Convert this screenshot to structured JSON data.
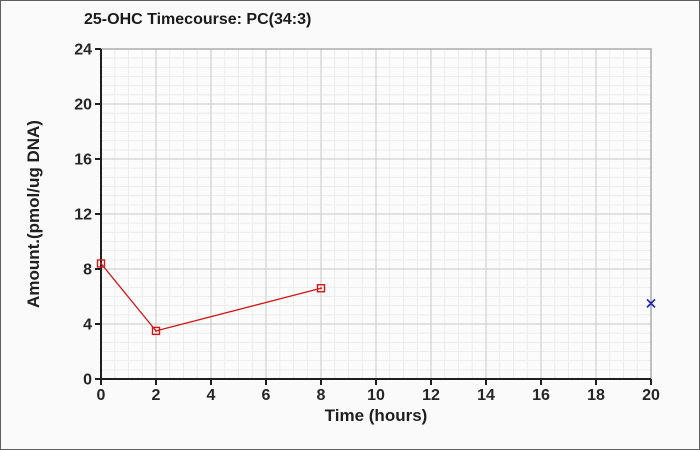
{
  "frame": {
    "background": "#fafafa",
    "border_color": "#5f5f5f"
  },
  "chart_data": {
    "type": "line",
    "title": "25-OHC Timecourse: PC(34:3)",
    "xlabel": "Time (hours)",
    "ylabel": "Amount.(pmol/ug DNA)",
    "xlim": [
      0,
      20
    ],
    "ylim": [
      0,
      24
    ],
    "x_ticks": [
      0,
      2,
      4,
      6,
      8,
      10,
      12,
      14,
      16,
      18,
      20
    ],
    "y_ticks": [
      0,
      4,
      8,
      12,
      16,
      20,
      24
    ],
    "x_major_step": 2,
    "y_major_step": 4,
    "x_minor_divisions": 4,
    "y_minor_divisions": 6,
    "grid": true,
    "legend": false,
    "series": [
      {
        "name": "red-timecourse-series",
        "type": "line",
        "marker": "open-square",
        "color": "#d01818",
        "x": [
          0,
          2,
          8
        ],
        "y": [
          8.4,
          3.5,
          6.6
        ]
      },
      {
        "name": "blue-point-series",
        "type": "scatter",
        "marker": "x",
        "color": "#2323b5",
        "x": [
          20
        ],
        "y": [
          5.5
        ]
      }
    ],
    "colors": {
      "plot_background": "#fcfcfc",
      "minor_grid": "#ededed",
      "major_grid": "#c9c9c9",
      "plot_border": "#ababab",
      "axis": "#1f1f1f",
      "text": "#262626"
    }
  }
}
